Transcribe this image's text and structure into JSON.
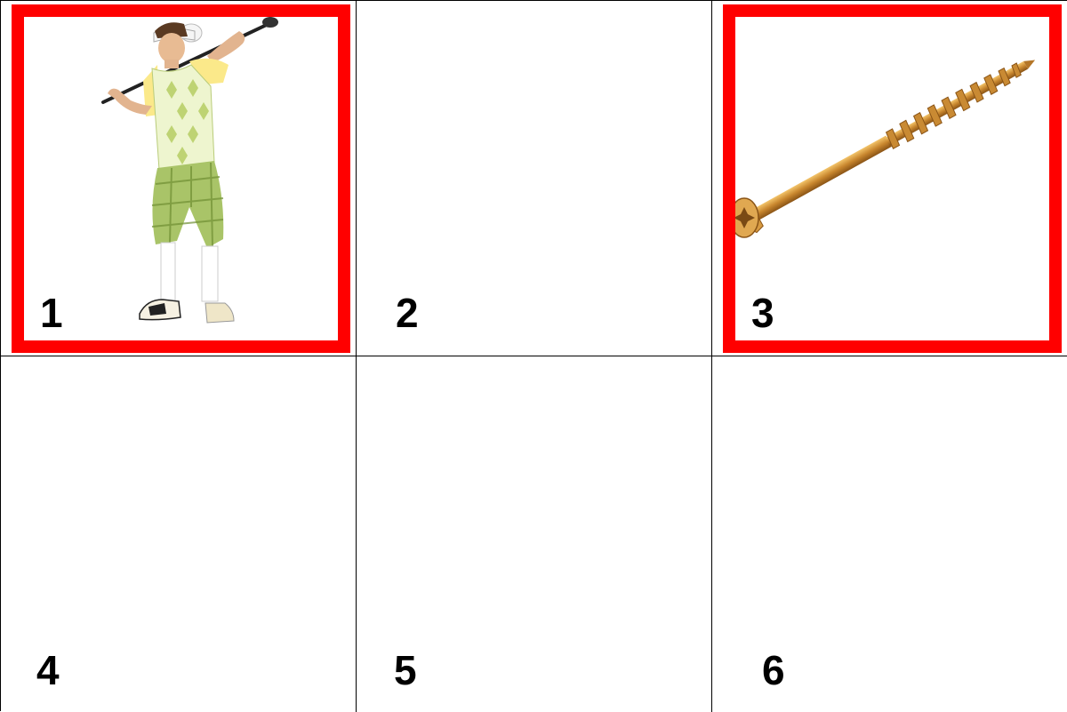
{
  "grid": {
    "cells": [
      {
        "number": "1",
        "selected": true,
        "image": "golfer-costume-image"
      },
      {
        "number": "2",
        "selected": false,
        "image": ""
      },
      {
        "number": "3",
        "selected": true,
        "image": "wood-screw-image"
      },
      {
        "number": "4",
        "selected": false,
        "image": ""
      },
      {
        "number": "5",
        "selected": false,
        "image": ""
      },
      {
        "number": "6",
        "selected": false,
        "image": ""
      }
    ]
  },
  "colors": {
    "selection": "#ff0000",
    "grid_line": "#000000",
    "background": "#ffffff"
  }
}
